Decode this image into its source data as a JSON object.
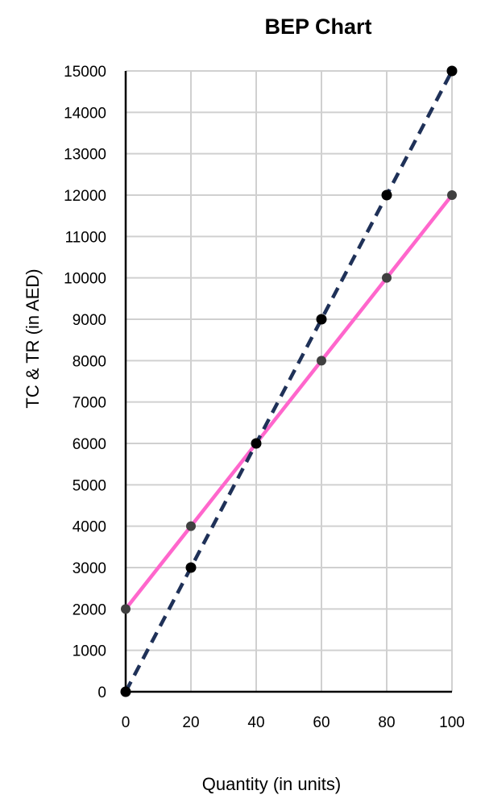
{
  "chart_data": {
    "type": "line",
    "title": "BEP Chart",
    "xlabel": "Quantity (in units)",
    "ylabel": "TC & TR (in AED)",
    "x": [
      0,
      20,
      40,
      60,
      80,
      100
    ],
    "xlim": [
      0,
      100
    ],
    "ylim": [
      0,
      15000
    ],
    "x_ticks": [
      "0",
      "20",
      "40",
      "60",
      "80",
      "100"
    ],
    "y_ticks": [
      "0",
      "1000",
      "2000",
      "3000",
      "4000",
      "5000",
      "6000",
      "7000",
      "8000",
      "9000",
      "10000",
      "11000",
      "12000",
      "13000",
      "14000",
      "15000"
    ],
    "grid": true,
    "legend": "none",
    "series": [
      {
        "values": [
          0,
          3000,
          6000,
          9000,
          12000,
          15000
        ],
        "color": "#1f3158",
        "marker_color": "#000000",
        "line_style": "dashed"
      },
      {
        "values": [
          2000,
          4000,
          6000,
          8000,
          10000,
          12000
        ],
        "color": "#ff66cc",
        "marker_color": "#404040",
        "line_style": "solid"
      }
    ]
  }
}
